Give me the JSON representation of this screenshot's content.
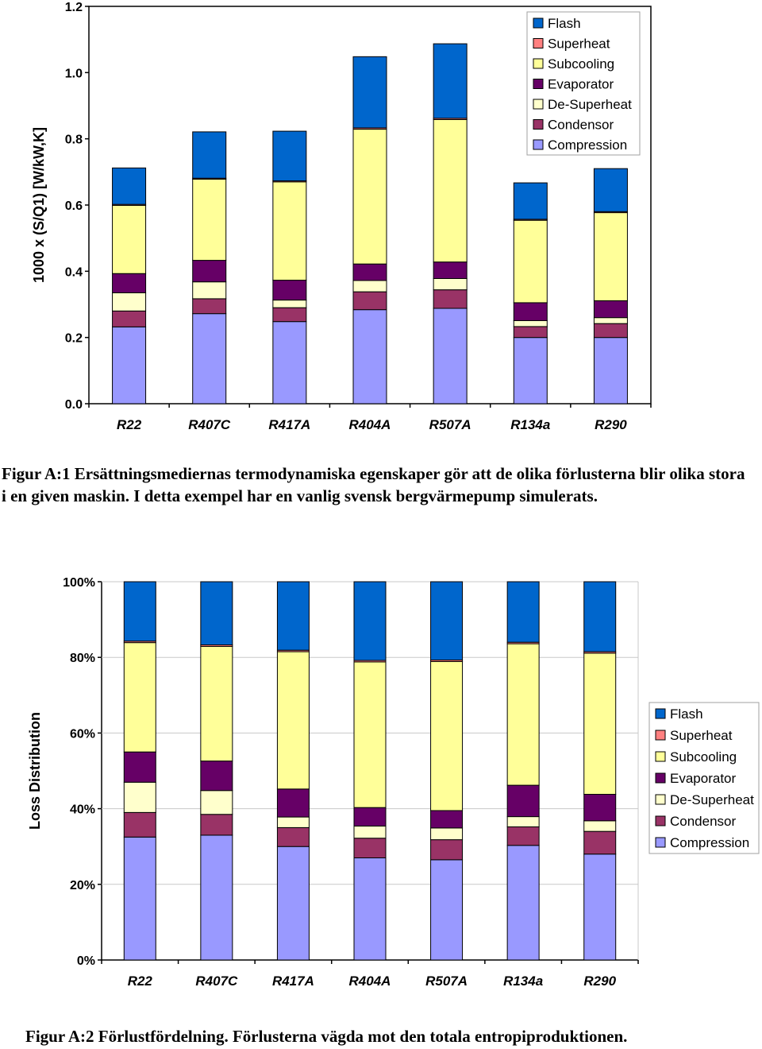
{
  "colors": {
    "Compression": "#9999ff",
    "Condensor": "#993366",
    "De-Superheat": "#ffffcc",
    "Evaporator": "#660066",
    "Subcooling": "#ffff99",
    "Superheat": "#ff8080",
    "Flash": "#0066cc"
  },
  "legend_order": [
    "Flash",
    "Superheat",
    "Subcooling",
    "Evaporator",
    "De-Superheat",
    "Condensor",
    "Compression"
  ],
  "chart_data": [
    {
      "type": "bar",
      "stacked": true,
      "categories": [
        "R22",
        "R407C",
        "R417A",
        "R404A",
        "R507A",
        "R134a",
        "R290"
      ],
      "ylabel": "1000 x (S/Q1) [W/kW,K]",
      "xlabel": "",
      "ylim": [
        0,
        1.2
      ],
      "yticks": [
        "0.0",
        "0.2",
        "0.4",
        "0.6",
        "0.8",
        "1.0",
        "1.2"
      ],
      "legend_position": "top-right",
      "series": [
        {
          "name": "Compression",
          "values": [
            0.232,
            0.272,
            0.248,
            0.284,
            0.288,
            0.2,
            0.2
          ]
        },
        {
          "name": "Condensor",
          "values": [
            0.048,
            0.045,
            0.042,
            0.054,
            0.056,
            0.033,
            0.042
          ]
        },
        {
          "name": "De-Superheat",
          "values": [
            0.055,
            0.051,
            0.023,
            0.034,
            0.034,
            0.018,
            0.018
          ]
        },
        {
          "name": "Evaporator",
          "values": [
            0.058,
            0.065,
            0.06,
            0.05,
            0.05,
            0.054,
            0.051
          ]
        },
        {
          "name": "Subcooling",
          "values": [
            0.206,
            0.245,
            0.297,
            0.407,
            0.43,
            0.249,
            0.266
          ]
        },
        {
          "name": "Superheat",
          "values": [
            0.003,
            0.003,
            0.003,
            0.004,
            0.004,
            0.003,
            0.003
          ]
        },
        {
          "name": "Flash",
          "values": [
            0.11,
            0.14,
            0.15,
            0.215,
            0.225,
            0.11,
            0.13
          ]
        }
      ]
    },
    {
      "type": "bar",
      "stacked": true,
      "percent": true,
      "categories": [
        "R22",
        "R407C",
        "R417A",
        "R404A",
        "R507A",
        "R134a",
        "R290"
      ],
      "ylabel": "Loss Distribution",
      "xlabel": "",
      "ylim": [
        0,
        100
      ],
      "yticks": [
        "0%",
        "20%",
        "40%",
        "60%",
        "80%",
        "100%"
      ],
      "legend_position": "right",
      "series": [
        {
          "name": "Compression",
          "values": [
            32.5,
            33.0,
            30.0,
            27.0,
            26.5,
            30.3,
            28.0
          ]
        },
        {
          "name": "Condensor",
          "values": [
            6.5,
            5.5,
            5.0,
            5.2,
            5.3,
            4.9,
            6.0
          ]
        },
        {
          "name": "De-Superheat",
          "values": [
            8.0,
            6.3,
            2.8,
            3.2,
            3.1,
            2.7,
            2.8
          ]
        },
        {
          "name": "Evaporator",
          "values": [
            8.0,
            7.8,
            7.4,
            4.9,
            4.6,
            8.3,
            7.0
          ]
        },
        {
          "name": "Subcooling",
          "values": [
            28.9,
            30.3,
            36.3,
            38.5,
            39.4,
            37.4,
            37.3
          ]
        },
        {
          "name": "Superheat",
          "values": [
            0.4,
            0.4,
            0.4,
            0.4,
            0.4,
            0.4,
            0.4
          ]
        },
        {
          "name": "Flash",
          "values": [
            15.7,
            16.7,
            18.1,
            20.8,
            20.7,
            16.0,
            18.5
          ]
        }
      ]
    }
  ],
  "captions": {
    "figure1": "Figur A:1 Ersättningsmediernas termodynamiska egenskaper gör att de olika förlusterna blir olika stora i en given maskin. I detta exempel har en vanlig svensk bergvärmepump simulerats.",
    "figure2": "Figur A:2 Förlustfördelning. Förlusterna vägda mot den totala entropiproduktionen."
  }
}
